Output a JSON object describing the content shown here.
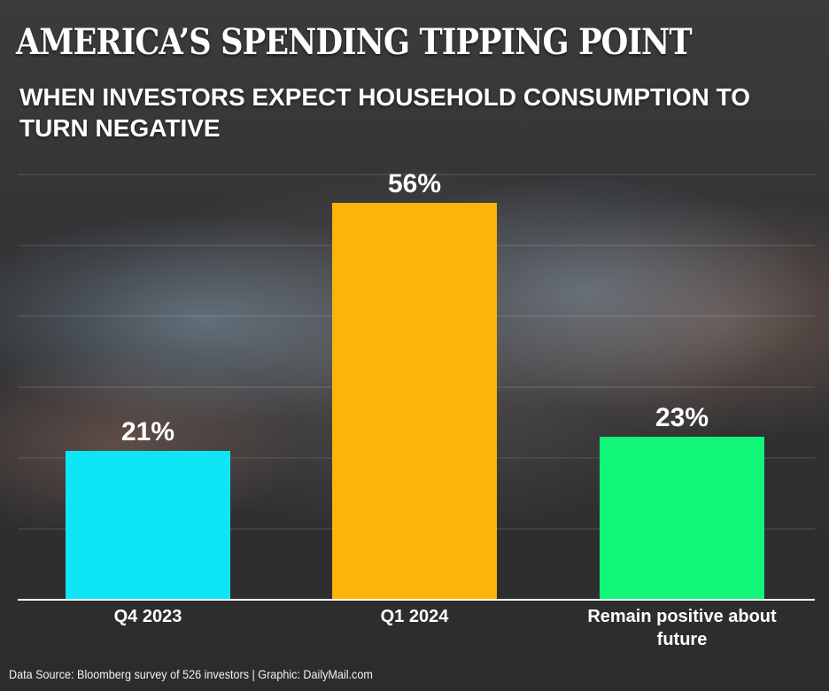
{
  "chart_data": {
    "type": "bar",
    "title": "AMERICA’S SPENDING TIPPING POINT",
    "subtitle": "WHEN INVESTORS EXPECT HOUSEHOLD CONSUMPTION TO TURN NEGATIVE",
    "categories": [
      "Q4 2023",
      "Q1 2024",
      "Remain positive about future"
    ],
    "category_lines": [
      [
        "Q4 2023"
      ],
      [
        "Q1 2024"
      ],
      [
        "Remain positive about",
        "future"
      ]
    ],
    "values": [
      21,
      56,
      23
    ],
    "data_labels": [
      "21%",
      "56%",
      "23%"
    ],
    "colors": [
      "#0ee6f7",
      "#fcb409",
      "#0ff678"
    ],
    "ylim": [
      0,
      60
    ],
    "grid": true,
    "legend": "none"
  },
  "footer": {
    "source": "Data Source: Bloomberg survey of 526 investors |  Graphic: DailyMail.com"
  }
}
